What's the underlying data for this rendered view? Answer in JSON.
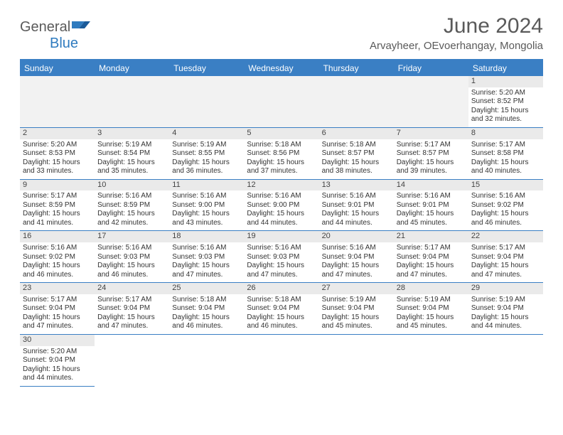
{
  "brand": {
    "part1": "General",
    "part2": "Blue"
  },
  "title": "June 2024",
  "location": "Arvayheer, OEvoerhangay, Mongolia",
  "colors": {
    "header_blue": "#3a7fc4",
    "text_gray": "#5a5a5a",
    "cell_bg_gray": "#eaeaea",
    "empty_bg": "#f2f2f2"
  },
  "day_names": [
    "Sunday",
    "Monday",
    "Tuesday",
    "Wednesday",
    "Thursday",
    "Friday",
    "Saturday"
  ],
  "weeks": [
    [
      null,
      null,
      null,
      null,
      null,
      null,
      {
        "n": "1",
        "sunrise": "5:20 AM",
        "sunset": "8:52 PM",
        "dl1": "15 hours",
        "dl2": "and 32 minutes."
      }
    ],
    [
      {
        "n": "2",
        "sunrise": "5:20 AM",
        "sunset": "8:53 PM",
        "dl1": "15 hours",
        "dl2": "and 33 minutes."
      },
      {
        "n": "3",
        "sunrise": "5:19 AM",
        "sunset": "8:54 PM",
        "dl1": "15 hours",
        "dl2": "and 35 minutes."
      },
      {
        "n": "4",
        "sunrise": "5:19 AM",
        "sunset": "8:55 PM",
        "dl1": "15 hours",
        "dl2": "and 36 minutes."
      },
      {
        "n": "5",
        "sunrise": "5:18 AM",
        "sunset": "8:56 PM",
        "dl1": "15 hours",
        "dl2": "and 37 minutes."
      },
      {
        "n": "6",
        "sunrise": "5:18 AM",
        "sunset": "8:57 PM",
        "dl1": "15 hours",
        "dl2": "and 38 minutes."
      },
      {
        "n": "7",
        "sunrise": "5:17 AM",
        "sunset": "8:57 PM",
        "dl1": "15 hours",
        "dl2": "and 39 minutes."
      },
      {
        "n": "8",
        "sunrise": "5:17 AM",
        "sunset": "8:58 PM",
        "dl1": "15 hours",
        "dl2": "and 40 minutes."
      }
    ],
    [
      {
        "n": "9",
        "sunrise": "5:17 AM",
        "sunset": "8:59 PM",
        "dl1": "15 hours",
        "dl2": "and 41 minutes."
      },
      {
        "n": "10",
        "sunrise": "5:16 AM",
        "sunset": "8:59 PM",
        "dl1": "15 hours",
        "dl2": "and 42 minutes."
      },
      {
        "n": "11",
        "sunrise": "5:16 AM",
        "sunset": "9:00 PM",
        "dl1": "15 hours",
        "dl2": "and 43 minutes."
      },
      {
        "n": "12",
        "sunrise": "5:16 AM",
        "sunset": "9:00 PM",
        "dl1": "15 hours",
        "dl2": "and 44 minutes."
      },
      {
        "n": "13",
        "sunrise": "5:16 AM",
        "sunset": "9:01 PM",
        "dl1": "15 hours",
        "dl2": "and 44 minutes."
      },
      {
        "n": "14",
        "sunrise": "5:16 AM",
        "sunset": "9:01 PM",
        "dl1": "15 hours",
        "dl2": "and 45 minutes."
      },
      {
        "n": "15",
        "sunrise": "5:16 AM",
        "sunset": "9:02 PM",
        "dl1": "15 hours",
        "dl2": "and 46 minutes."
      }
    ],
    [
      {
        "n": "16",
        "sunrise": "5:16 AM",
        "sunset": "9:02 PM",
        "dl1": "15 hours",
        "dl2": "and 46 minutes."
      },
      {
        "n": "17",
        "sunrise": "5:16 AM",
        "sunset": "9:03 PM",
        "dl1": "15 hours",
        "dl2": "and 46 minutes."
      },
      {
        "n": "18",
        "sunrise": "5:16 AM",
        "sunset": "9:03 PM",
        "dl1": "15 hours",
        "dl2": "and 47 minutes."
      },
      {
        "n": "19",
        "sunrise": "5:16 AM",
        "sunset": "9:03 PM",
        "dl1": "15 hours",
        "dl2": "and 47 minutes."
      },
      {
        "n": "20",
        "sunrise": "5:16 AM",
        "sunset": "9:04 PM",
        "dl1": "15 hours",
        "dl2": "and 47 minutes."
      },
      {
        "n": "21",
        "sunrise": "5:17 AM",
        "sunset": "9:04 PM",
        "dl1": "15 hours",
        "dl2": "and 47 minutes."
      },
      {
        "n": "22",
        "sunrise": "5:17 AM",
        "sunset": "9:04 PM",
        "dl1": "15 hours",
        "dl2": "and 47 minutes."
      }
    ],
    [
      {
        "n": "23",
        "sunrise": "5:17 AM",
        "sunset": "9:04 PM",
        "dl1": "15 hours",
        "dl2": "and 47 minutes."
      },
      {
        "n": "24",
        "sunrise": "5:17 AM",
        "sunset": "9:04 PM",
        "dl1": "15 hours",
        "dl2": "and 47 minutes."
      },
      {
        "n": "25",
        "sunrise": "5:18 AM",
        "sunset": "9:04 PM",
        "dl1": "15 hours",
        "dl2": "and 46 minutes."
      },
      {
        "n": "26",
        "sunrise": "5:18 AM",
        "sunset": "9:04 PM",
        "dl1": "15 hours",
        "dl2": "and 46 minutes."
      },
      {
        "n": "27",
        "sunrise": "5:19 AM",
        "sunset": "9:04 PM",
        "dl1": "15 hours",
        "dl2": "and 45 minutes."
      },
      {
        "n": "28",
        "sunrise": "5:19 AM",
        "sunset": "9:04 PM",
        "dl1": "15 hours",
        "dl2": "and 45 minutes."
      },
      {
        "n": "29",
        "sunrise": "5:19 AM",
        "sunset": "9:04 PM",
        "dl1": "15 hours",
        "dl2": "and 44 minutes."
      }
    ],
    [
      {
        "n": "30",
        "sunrise": "5:20 AM",
        "sunset": "9:04 PM",
        "dl1": "15 hours",
        "dl2": "and 44 minutes."
      },
      null,
      null,
      null,
      null,
      null,
      null
    ]
  ],
  "labels": {
    "sunrise_prefix": "Sunrise: ",
    "sunset_prefix": "Sunset: ",
    "daylight_prefix": "Daylight: "
  }
}
